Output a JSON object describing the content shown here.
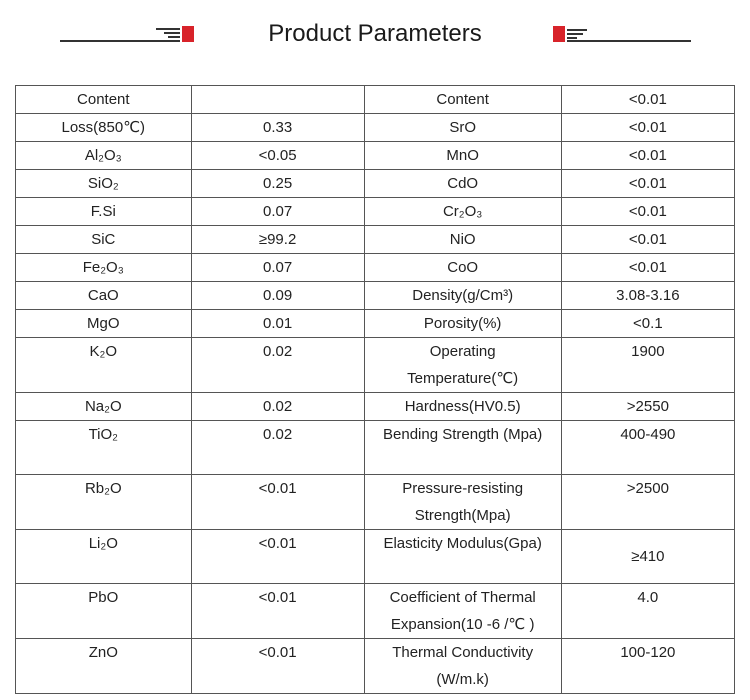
{
  "header": {
    "title": "Product Parameters",
    "accent_color": "#d8232a"
  },
  "table": {
    "rows": [
      [
        "Content",
        "",
        "Content",
        "<0.01"
      ],
      [
        "Loss(850℃)",
        "0.33",
        "SrO",
        "<0.01"
      ],
      [
        "Al₂O₃",
        "<0.05",
        "MnO",
        "<0.01"
      ],
      [
        "SiO₂",
        "0.25",
        "CdO",
        "<0.01"
      ],
      [
        "F.Si",
        "0.07",
        "Cr₂O₃",
        "<0.01"
      ],
      [
        "SiC",
        "≥99.2",
        "NiO",
        "<0.01"
      ],
      [
        "Fe₂O₃",
        "0.07",
        "CoO",
        "<0.01"
      ],
      [
        "CaO",
        "0.09",
        "Density(g/Cm³)",
        "3.08-3.16"
      ],
      [
        "MgO",
        "0.01",
        "Porosity(%)",
        "<0.1"
      ],
      [
        "K₂O",
        "0.02",
        "Operating Temperature(℃)",
        "1900"
      ],
      [
        "Na₂O",
        "0.02",
        "Hardness(HV0.5)",
        ">2550"
      ],
      [
        "TiO₂",
        "0.02",
        "Bending Strength (Mpa)",
        "400-490"
      ],
      [
        "Rb₂O",
        "<0.01",
        "Pressure-resisting Strength(Mpa)",
        ">2500"
      ],
      [
        "Li₂O",
        "<0.01",
        "Elasticity Modulus(Gpa)",
        "≥410"
      ],
      [
        "PbO",
        "<0.01",
        "Coefficient of Thermal Expansion(10 -6 /℃ )",
        "4.0"
      ],
      [
        "ZnO",
        "<0.01",
        "Thermal Conductivity (W/m.k)",
        "100-120"
      ]
    ]
  }
}
